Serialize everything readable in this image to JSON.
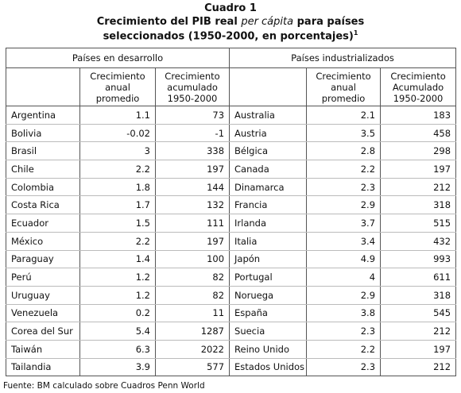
{
  "header": {
    "label": "Cuadro 1",
    "title_line1_before": "Crecimiento del PIB real",
    "title_line1_italic": "per cápita",
    "title_line1_after": "para países",
    "title_line2": "seleccionados (1950-2000, en porcentajes)",
    "footnote_mark": "1"
  },
  "table": {
    "groups": [
      "Países en desarrollo",
      "Países industrializados"
    ],
    "left_columns": [
      [
        "Crecimiento",
        "anual",
        "promedio"
      ],
      [
        "Crecimiento",
        "acumulado",
        "1950-2000"
      ]
    ],
    "right_columns": [
      [
        "Crecimiento",
        "anual",
        "promedio"
      ],
      [
        "Crecimiento",
        "Acumulado",
        "1950-2000"
      ]
    ],
    "left_rows": [
      [
        "Argentina",
        1.1,
        73
      ],
      [
        "Bolivia",
        -0.02,
        -1
      ],
      [
        "Brasil",
        3,
        338
      ],
      [
        "Chile",
        2.2,
        197
      ],
      [
        "Colombia",
        1.8,
        144
      ],
      [
        "Costa Rica",
        1.7,
        132
      ],
      [
        "Ecuador",
        1.5,
        111
      ],
      [
        "México",
        2.2,
        197
      ],
      [
        "Paraguay",
        1.4,
        100
      ],
      [
        "Perú",
        1.2,
        82
      ],
      [
        "Uruguay",
        1.2,
        82
      ],
      [
        "Venezuela",
        0.2,
        11
      ],
      [
        "Corea del Sur",
        5.4,
        1287
      ],
      [
        "Taiwán",
        6.3,
        2022
      ],
      [
        "Tailandia",
        3.9,
        577
      ]
    ],
    "right_rows": [
      [
        "Australia",
        2.1,
        183
      ],
      [
        "Austria",
        3.5,
        458
      ],
      [
        "Bélgica",
        2.8,
        298
      ],
      [
        "Canada",
        2.2,
        197
      ],
      [
        "Dinamarca",
        2.3,
        212
      ],
      [
        "Francia",
        2.9,
        318
      ],
      [
        "Irlanda",
        3.7,
        515
      ],
      [
        "Italia",
        3.4,
        432
      ],
      [
        "Japón",
        4.9,
        993
      ],
      [
        "Portugal",
        4,
        611
      ],
      [
        "Noruega",
        2.9,
        318
      ],
      [
        "España",
        3.8,
        545
      ],
      [
        "Suecia",
        2.3,
        212
      ],
      [
        "Reino Unido",
        2.2,
        197
      ],
      [
        "Estados Unidos",
        2.3,
        212
      ]
    ]
  },
  "footer": {
    "source": "Fuente: BM calculado sobre Cuadros Penn World"
  }
}
